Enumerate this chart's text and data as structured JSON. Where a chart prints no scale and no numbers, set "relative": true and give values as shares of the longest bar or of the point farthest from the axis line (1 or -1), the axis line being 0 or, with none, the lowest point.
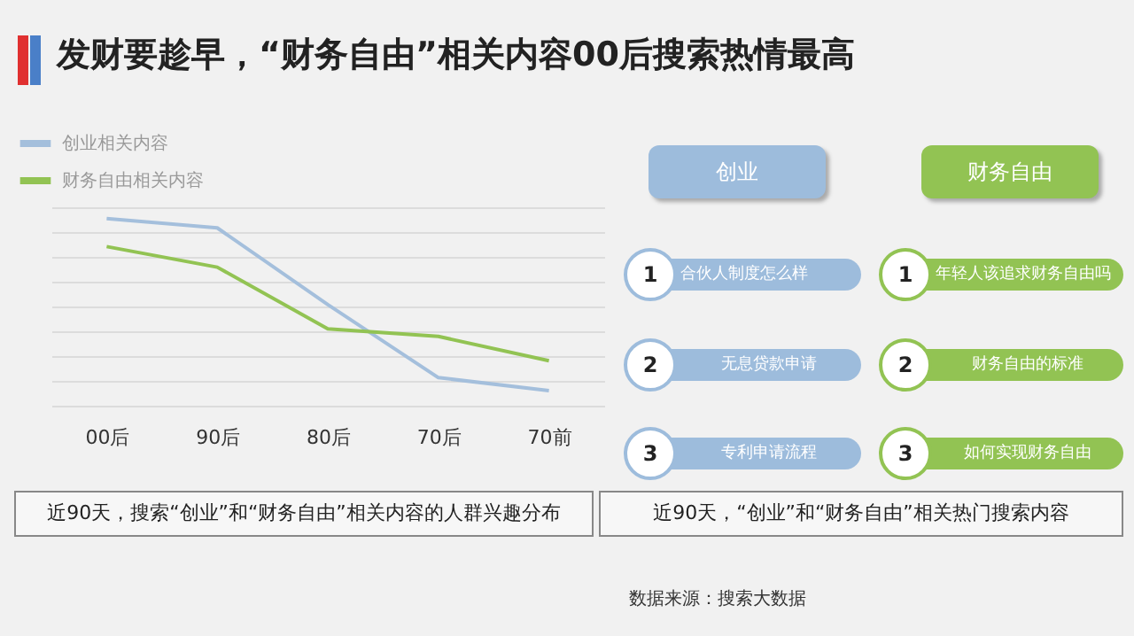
{
  "chart_data": [
    {
      "type": "line",
      "title": "发财要趁早，“财务自由”相关内容00后搜索热情最高",
      "relative": true,
      "grid": "y",
      "legend": "top left",
      "marker": "none",
      "line_style": "solid",
      "categories": [
        "00后",
        "90后",
        "80后",
        "70后",
        "70前"
      ],
      "series": [
        {
          "name": "创业相关内容",
          "color": "#a4bfdc",
          "values": [
            1,
            0.95,
            0.54,
            0.15,
            0.08
          ]
        },
        {
          "name": "财务自由相关内容",
          "color": "#92c353",
          "values": [
            0.85,
            0.74,
            0.41,
            0.37,
            0.24
          ]
        }
      ],
      "annotations": [
        "近90天，搜索“创业”和“财务自由”相关内容的人群兴趣分布"
      ]
    },
    {
      "type": "other",
      "annotations": [
        "创业",
        "财务自由",
        "1",
        "合伙人制度怎么样",
        "1",
        "年轻人该追求财务自由吗",
        "2",
        "无息贷款申请",
        "2",
        "财务自由的标准",
        "3",
        "专利申请流程",
        "3",
        "如何实现财务自由",
        "近90天，“创业”和“财务自由”相关热门搜索内容",
        "数据来源：搜索大数据"
      ]
    }
  ]
}
